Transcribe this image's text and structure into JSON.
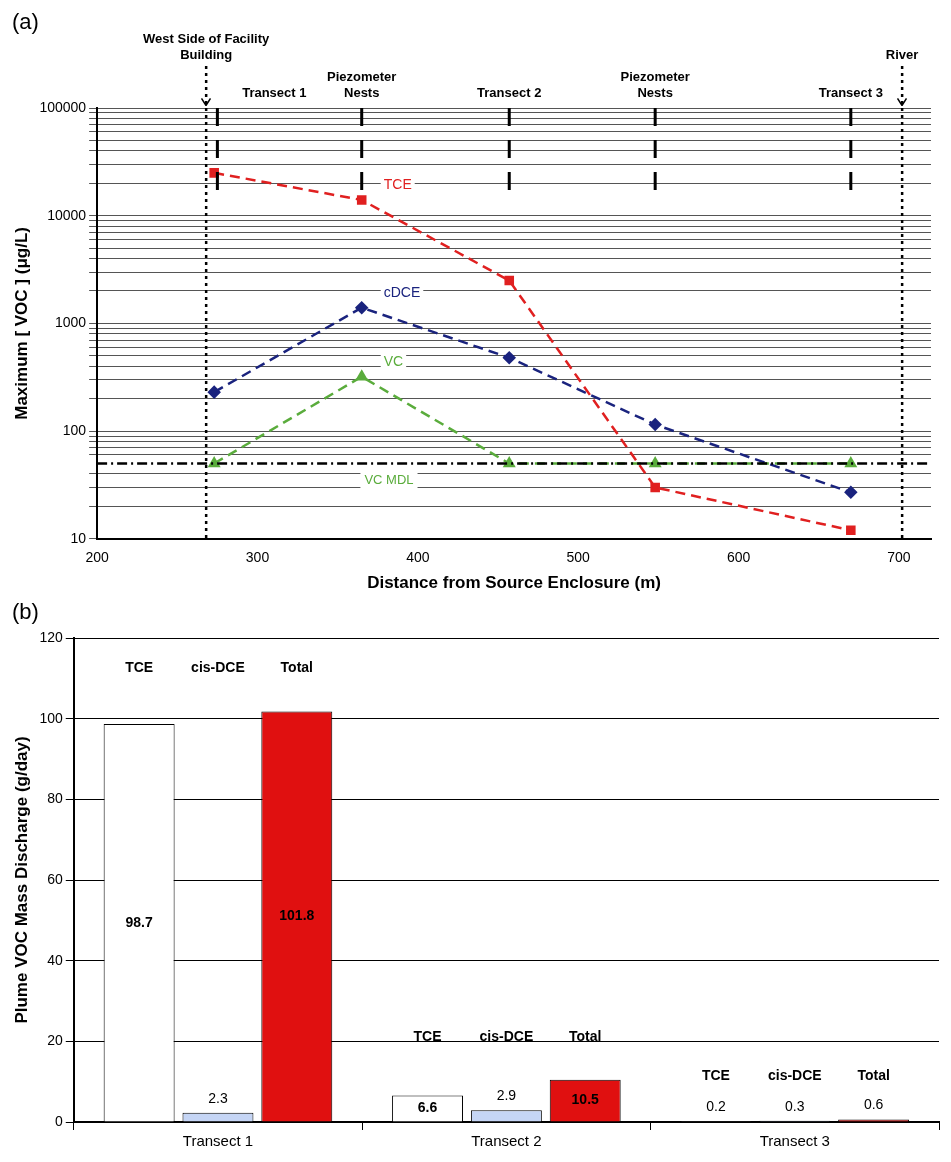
{
  "chart_data": [
    {
      "type": "line",
      "annotations": [
        "(a)"
      ],
      "xlabel": "Distance from Source Enclosure (m)",
      "ylabel": "Maximum [ VOC ] (μg/L)",
      "log": "y",
      "xlim": [
        200,
        720
      ],
      "xticks": [
        200,
        300,
        400,
        500,
        600,
        700
      ],
      "ylim": [
        10,
        100000
      ],
      "yticks": [
        10,
        {
          "value": 20,
          "label": null
        },
        {
          "value": 30,
          "label": null
        },
        {
          "value": 40,
          "label": null
        },
        {
          "value": 60,
          "label": null
        },
        {
          "value": 70,
          "label": null
        },
        {
          "value": 80,
          "label": null
        },
        {
          "value": 90,
          "label": null
        },
        100,
        {
          "value": 200,
          "label": null
        },
        {
          "value": 300,
          "label": null
        },
        {
          "value": 400,
          "label": null
        },
        {
          "value": 500,
          "label": null
        },
        {
          "value": 600,
          "label": null
        },
        {
          "value": 700,
          "label": null
        },
        {
          "value": 800,
          "label": null
        },
        {
          "value": 900,
          "label": null
        },
        1000,
        {
          "value": 2000,
          "label": null
        },
        {
          "value": 3000,
          "label": null
        },
        {
          "value": 4000,
          "label": null
        },
        {
          "value": 5000,
          "label": null
        },
        {
          "value": 6000,
          "label": null
        },
        {
          "value": 7000,
          "label": null
        },
        {
          "value": 8000,
          "label": null
        },
        {
          "value": 9000,
          "label": null
        },
        10000,
        {
          "value": 20000,
          "label": null
        },
        {
          "value": 30000,
          "label": null
        },
        {
          "value": 40000,
          "label": null
        },
        {
          "value": 50000,
          "label": null
        },
        {
          "value": 60000,
          "label": null
        },
        {
          "value": 70000,
          "label": null
        },
        {
          "value": 80000,
          "label": null
        },
        {
          "value": 90000,
          "label": null
        },
        100000
      ],
      "grid": "y",
      "legend": false,
      "line_style": "dashed",
      "series": [
        {
          "name": "TCE",
          "color": "#e02020",
          "marker": "square",
          "x": [
            273,
            365,
            457,
            548,
            670
          ],
          "values": [
            25000,
            14000,
            2500,
            30,
            12
          ]
        },
        {
          "name": "cDCE",
          "color": "#1a237e",
          "marker": "diamond",
          "x": [
            273,
            365,
            457,
            548,
            670
          ],
          "values": [
            230,
            1400,
            480,
            115,
            27
          ]
        },
        {
          "name": "VC",
          "color": "#5aac3c",
          "marker": "triangle",
          "x": [
            273,
            365,
            457,
            548,
            670
          ],
          "values": [
            50,
            320,
            50,
            50,
            50
          ]
        }
      ],
      "ref_lines": [
        {
          "axis": "x",
          "value": 268,
          "label": "West Side of Facility Building",
          "line_style": "dotted",
          "color": "#000000"
        },
        {
          "axis": "x",
          "value": 275,
          "label": "Transect 1",
          "line_style": "dashed",
          "color": "#000000"
        },
        {
          "axis": "x",
          "value": 365,
          "label": "Piezometer Nests",
          "line_style": "dashed",
          "color": "#000000"
        },
        {
          "axis": "x",
          "value": 457,
          "label": "Transect 2",
          "line_style": "dashed",
          "color": "#000000"
        },
        {
          "axis": "x",
          "value": 548,
          "label": "Piezometer Nests",
          "line_style": "dashed",
          "color": "#000000"
        },
        {
          "axis": "x",
          "value": 670,
          "label": "Transect 3",
          "line_style": "dashed",
          "color": "#000000"
        },
        {
          "axis": "x",
          "value": 702,
          "label": "River",
          "line_style": "dotted",
          "color": "#000000"
        },
        {
          "axis": "y",
          "value": 50,
          "label": "VC MDL",
          "line_style": "dashdot",
          "color": "#000000"
        }
      ]
    },
    {
      "type": "bar",
      "annotations": [
        "(b)"
      ],
      "ylabel": "Plume VOC Mass Discharge (g/day)",
      "categories": [
        "Transect 1",
        "Transect 2",
        "Transect 3"
      ],
      "ylim": [
        0,
        120
      ],
      "yticks": [
        0,
        20,
        40,
        60,
        80,
        100,
        120
      ],
      "grid": "y",
      "legend": false,
      "data_labels": true,
      "series": [
        {
          "name": "TCE",
          "color": "#ffffff",
          "values": [
            98.7,
            6.6,
            0.2
          ]
        },
        {
          "name": "cis-DCE",
          "color": "#c5d5f5",
          "values": [
            2.3,
            2.9,
            0.3
          ]
        },
        {
          "name": "Total",
          "color": "#e01010",
          "values": [
            101.8,
            10.5,
            0.6
          ]
        }
      ]
    }
  ]
}
